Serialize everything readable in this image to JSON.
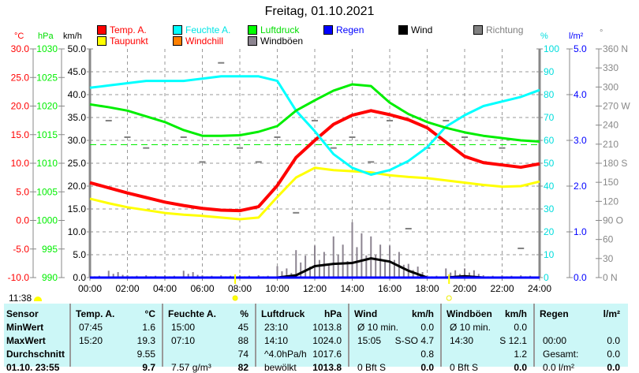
{
  "title": "Freitag, 01.10.2021",
  "legend": [
    {
      "label": "Temp. A.",
      "color": "#ff0000",
      "text_color": "#ff0000"
    },
    {
      "label": "Taupunkt",
      "color": "#ffff00",
      "text_color": "#ff0000"
    },
    {
      "label": "Feuchte A.",
      "color": "#00ffff",
      "text_color": "#00e5e5"
    },
    {
      "label": "Windchill",
      "color": "#ff8000",
      "text_color": "#ff0000"
    },
    {
      "label": "Luftdruck",
      "color": "#00ff00",
      "text_color": "#00dd00"
    },
    {
      "label": "Windböen",
      "color": "#8c8490",
      "text_color": "#000000"
    },
    {
      "label": "Regen",
      "color": "#0000ff",
      "text_color": "#0000ff"
    },
    {
      "label": "Wind",
      "color": "#000000",
      "text_color": "#000000"
    },
    {
      "label": "Richtung",
      "color": "#808080",
      "text_color": "#808080"
    }
  ],
  "units": {
    "temp": "°C",
    "pressure": "hPa",
    "wind": "km/h",
    "humidity": "%",
    "rain": "l/m²",
    "direction": "°"
  },
  "timestamp": "11:38",
  "chart_data": {
    "type": "line",
    "title": "Freitag, 01.10.2021",
    "x_hours": [
      0,
      1,
      2,
      3,
      4,
      5,
      6,
      7,
      8,
      9,
      10,
      11,
      12,
      13,
      14,
      15,
      16,
      17,
      18,
      19,
      20,
      21,
      22,
      23,
      24
    ],
    "x_ticks": [
      "00:00",
      "02:00",
      "04:00",
      "06:00",
      "08:00",
      "10:00",
      "12:00",
      "14:00",
      "16:00",
      "18:00",
      "20:00",
      "22:00",
      "24:00"
    ],
    "axes": {
      "temp": {
        "range": [
          -10,
          30
        ],
        "ticks": [
          "30.0",
          "25.0",
          "20.0",
          "15.0",
          "10.0",
          "5.0",
          "0.0",
          "-5.0",
          "-10.0"
        ]
      },
      "pressure": {
        "range": [
          990,
          1030
        ],
        "ticks": [
          "1030",
          "1025",
          "1020",
          "1015",
          "1010",
          "1005",
          "1000",
          "995",
          "990"
        ]
      },
      "wind": {
        "range": [
          0,
          50
        ],
        "ticks": [
          "50.0",
          "45.0",
          "40.0",
          "35.0",
          "30.0",
          "25.0",
          "20.0",
          "15.0",
          "10.0",
          "5.0",
          "0.0"
        ]
      },
      "humidity": {
        "range": [
          0,
          100
        ],
        "ticks": [
          "100",
          "90",
          "80",
          "70",
          "60",
          "50",
          "40",
          "30",
          "20",
          "10",
          "0"
        ]
      },
      "rain": {
        "range": [
          0,
          5
        ],
        "ticks": [
          "5.0",
          "4.0",
          "3.0",
          "2.0",
          "1.0",
          "0.0"
        ]
      },
      "direction": {
        "range": [
          0,
          360
        ],
        "ticks": [
          "360 N",
          "330",
          "300",
          "270 W",
          "240",
          "210",
          "180 S",
          "150",
          "120",
          "90  O",
          "60",
          "30",
          "0   N"
        ]
      }
    },
    "reference_pressure": 1013.25,
    "series": [
      {
        "name": "Temp. A.",
        "axis": "temp",
        "color": "#ff0000",
        "values": [
          6.6,
          5.7,
          4.8,
          4.0,
          3.2,
          2.6,
          2.1,
          1.8,
          1.7,
          2.4,
          6.1,
          11.0,
          14.0,
          16.8,
          18.4,
          19.2,
          18.5,
          17.6,
          16.2,
          13.7,
          11.2,
          10.1,
          9.7,
          9.3,
          9.9
        ]
      },
      {
        "name": "Taupunkt",
        "axis": "temp",
        "color": "#ffff00",
        "values": [
          3.8,
          3.0,
          2.3,
          1.8,
          1.3,
          1.0,
          0.8,
          0.5,
          0.2,
          0.5,
          4.1,
          7.5,
          9.2,
          8.8,
          8.6,
          8.4,
          7.9,
          7.6,
          7.4,
          7.0,
          6.6,
          6.2,
          5.9,
          6.0,
          6.8
        ]
      },
      {
        "name": "Feuchte A.",
        "axis": "humidity",
        "color": "#00ffff",
        "values": [
          83,
          84,
          85,
          86,
          86,
          86,
          87,
          88,
          88,
          88,
          86,
          73,
          64,
          54,
          48,
          45,
          47,
          51,
          57,
          66,
          71,
          75,
          77,
          79,
          82
        ]
      },
      {
        "name": "Luftdruck",
        "axis": "pressure",
        "color": "#00ee00",
        "values": [
          1020.3,
          1019.8,
          1019.2,
          1018.2,
          1017.2,
          1015.8,
          1014.8,
          1014.8,
          1014.9,
          1015.5,
          1016.5,
          1019.2,
          1021.0,
          1022.7,
          1023.8,
          1023.5,
          1020.6,
          1018.6,
          1017.2,
          1016.2,
          1015.4,
          1014.8,
          1014.4,
          1014.0,
          1013.8
        ]
      },
      {
        "name": "Wind",
        "axis": "wind",
        "color": "#000000",
        "values": [
          0,
          0,
          0,
          0,
          0,
          0,
          0,
          0,
          0,
          0,
          0,
          0.5,
          2.5,
          3.0,
          3.2,
          4.2,
          3.5,
          1.5,
          0,
          0,
          0.3,
          0,
          0,
          0,
          0
        ]
      },
      {
        "name": "Regen",
        "axis": "rain",
        "color": "#0000ff",
        "values": [
          0,
          0,
          0,
          0,
          0,
          0,
          0,
          0,
          0,
          0,
          0,
          0,
          0,
          0,
          0,
          0,
          0,
          0,
          0,
          0,
          0,
          0,
          0,
          0,
          0
        ]
      }
    ],
    "gusts": {
      "name": "Windböen",
      "axis": "wind",
      "color": "#8c8490",
      "values": [
        0.5,
        1.5,
        0.5,
        0.5,
        0.5,
        1.5,
        0.5,
        0.5,
        0.5,
        0.5,
        2.5,
        6,
        7,
        9,
        12.1,
        9,
        7,
        3,
        0.5,
        2,
        2,
        0.5,
        0.5,
        0.5,
        0.5
      ]
    },
    "direction": {
      "name": "Richtung",
      "axis": "direction",
      "color": "#808080",
      "points": [
        [
          1,
          247
        ],
        [
          2,
          221
        ],
        [
          3,
          204
        ],
        [
          5,
          221
        ],
        [
          6,
          182
        ],
        [
          7,
          338
        ],
        [
          8,
          204
        ],
        [
          9,
          182
        ],
        [
          10,
          221
        ],
        [
          11,
          102
        ],
        [
          12,
          247
        ],
        [
          13,
          204
        ],
        [
          14,
          221
        ],
        [
          15,
          182
        ],
        [
          16,
          247
        ],
        [
          17,
          77
        ],
        [
          18,
          204
        ],
        [
          19,
          247
        ],
        [
          20,
          221
        ],
        [
          21,
          182
        ],
        [
          22,
          204
        ],
        [
          23,
          46
        ]
      ]
    },
    "sun_markers": [
      "07:45",
      "19:10"
    ]
  },
  "table": {
    "headers": [
      {
        "name": "Sensor",
        "unit": ""
      },
      {
        "name": "Temp. A.",
        "unit": "°C"
      },
      {
        "name": "Feuchte A.",
        "unit": "%"
      },
      {
        "name": "Luftdruck",
        "unit": "hPa"
      },
      {
        "name": "Wind",
        "unit": "km/h"
      },
      {
        "name": "Windböen",
        "unit": "km/h"
      },
      {
        "name": "Regen",
        "unit": "l/m²"
      }
    ],
    "rows": [
      {
        "label": "MinWert",
        "cells": [
          [
            "07:45",
            "1.6"
          ],
          [
            "15:00",
            "45"
          ],
          [
            "23:10",
            "1013.8"
          ],
          [
            "Ø 10 min.",
            "0.0"
          ],
          [
            "Ø 10 min.",
            "0.0"
          ],
          [
            "",
            ""
          ]
        ]
      },
      {
        "label": "MaxWert",
        "cells": [
          [
            "15:20",
            "19.3"
          ],
          [
            "07:10",
            "88"
          ],
          [
            "14:10",
            "1024.0"
          ],
          [
            "15:05",
            "S-SO 4.7"
          ],
          [
            "14:30",
            "S 12.1"
          ],
          [
            "00:00",
            "0.0"
          ]
        ]
      },
      {
        "label": "Durchschnitt",
        "cells": [
          [
            "",
            "9.55"
          ],
          [
            "",
            "74"
          ],
          [
            "^4.0hPa/h",
            "1017.6"
          ],
          [
            "",
            "0.8"
          ],
          [
            "",
            "1.2"
          ],
          [
            "Gesamt:",
            "0.0"
          ]
        ]
      },
      {
        "label": "01.10. 23:55",
        "cells": [
          [
            "",
            "9.7"
          ],
          [
            "7.57 g/m³",
            "82"
          ],
          [
            "bewölkt",
            "1013.8"
          ],
          [
            "0 Bft S",
            "0.0"
          ],
          [
            "0 Bft S",
            "0.0"
          ],
          [
            "0.0 l/m²",
            "0.0"
          ]
        ]
      }
    ]
  }
}
